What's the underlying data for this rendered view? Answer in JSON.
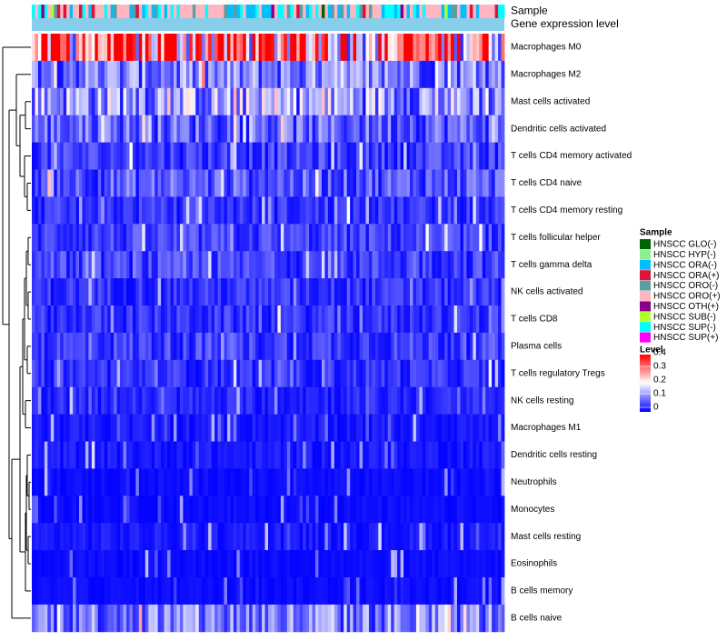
{
  "chart_data": {
    "type": "heatmap",
    "title": "",
    "annotation_tracks": [
      "Sample",
      "Gene expression level"
    ],
    "rows": [
      "Macrophages M0",
      "Macrophages M2",
      "Mast cells activated",
      "Dendritic cells activated",
      "T cells CD4 memory activated",
      "T cells CD4 naive",
      "T cells CD4 memory resting",
      "T cells follicular helper",
      "T cells gamma delta",
      "NK cells activated",
      "T cells CD8",
      "Plasma cells",
      "T cells regulatory  Tregs",
      "NK cells resting",
      "Macrophages M1",
      "Dendritic cells resting",
      "Neutrophils",
      "Monocytes",
      "Mast cells resting",
      "Eosinophils",
      "B cells memory",
      "B cells naive"
    ],
    "row_mean_levels": [
      0.32,
      0.1,
      0.13,
      0.08,
      0.05,
      0.07,
      0.04,
      0.05,
      0.05,
      0.04,
      0.04,
      0.05,
      0.04,
      0.03,
      0.02,
      0.02,
      0.01,
      0.01,
      0.02,
      0.01,
      0.01,
      0.1
    ],
    "n_samples": 150,
    "legend_sample": {
      "title": "Sample",
      "items": [
        {
          "label": "HNSCC GLO(-)",
          "color": "#006400"
        },
        {
          "label": "HNSCC HYP(-)",
          "color": "#90ee90"
        },
        {
          "label": "HNSCC ORA(-)",
          "color": "#00bfff"
        },
        {
          "label": "HNSCC ORA(+)",
          "color": "#dc143c"
        },
        {
          "label": "HNSCC ORO(-)",
          "color": "#5f9ea0"
        },
        {
          "label": "HNSCC ORO(+)",
          "color": "#ffb6c1"
        },
        {
          "label": "HNSCC OTH(+)",
          "color": "#8b008b"
        },
        {
          "label": "HNSCC SUB(-)",
          "color": "#adff2f"
        },
        {
          "label": "HNSCC SUP(-)",
          "color": "#00ffff"
        },
        {
          "label": "HNSCC SUP(+)",
          "color": "#ff00ff"
        }
      ]
    },
    "legend_level": {
      "title": "Level",
      "ticks": [
        "0.4",
        "0.3",
        "0.2",
        "0.1",
        "0"
      ],
      "tick_values": [
        0.4,
        0.3,
        0.2,
        0.1,
        0
      ],
      "range": [
        0,
        0.42
      ],
      "colors": {
        "low": "#0000ff",
        "mid": "#ffffff",
        "high": "#ff0000"
      }
    },
    "gene_expression_track_color": "#87ceeb"
  }
}
